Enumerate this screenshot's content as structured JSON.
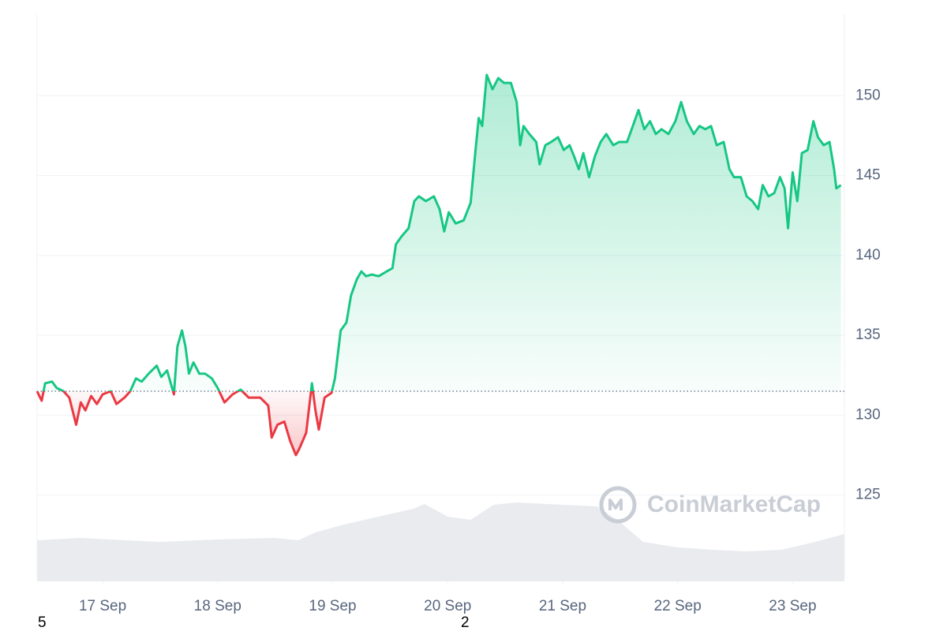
{
  "chart_data": {
    "type": "line",
    "x": [
      16.43,
      16.47,
      16.5,
      16.56,
      16.6,
      16.66,
      16.71,
      16.77,
      16.81,
      16.85,
      16.9,
      16.95,
      17.0,
      17.07,
      17.12,
      17.19,
      17.24,
      17.29,
      17.34,
      17.4,
      17.47,
      17.51,
      17.56,
      17.62,
      17.65,
      17.69,
      17.72,
      17.75,
      17.79,
      17.84,
      17.89,
      17.95,
      18.0,
      18.06,
      18.13,
      18.2,
      18.27,
      18.37,
      18.44,
      18.47,
      18.52,
      18.58,
      18.63,
      18.68,
      18.71,
      18.77,
      18.82,
      18.85,
      18.88,
      18.93,
      18.99,
      19.02,
      19.07,
      19.12,
      19.16,
      19.21,
      19.25,
      19.29,
      19.34,
      19.4,
      19.47,
      19.52,
      19.55,
      19.6,
      19.66,
      19.71,
      19.75,
      19.81,
      19.88,
      19.93,
      19.97,
      20.01,
      20.07,
      20.14,
      20.2,
      20.24,
      20.27,
      20.3,
      20.34,
      20.39,
      20.44,
      20.49,
      20.55,
      20.6,
      20.63,
      20.66,
      20.71,
      20.77,
      20.8,
      20.85,
      20.9,
      20.96,
      21.01,
      21.06,
      21.1,
      21.14,
      21.18,
      21.23,
      21.28,
      21.33,
      21.38,
      21.44,
      21.49,
      21.56,
      21.61,
      21.66,
      21.71,
      21.76,
      21.81,
      21.86,
      21.92,
      21.98,
      22.03,
      22.08,
      22.14,
      22.19,
      22.24,
      22.29,
      22.34,
      22.4,
      22.45,
      22.49,
      22.55,
      22.6,
      22.65,
      22.7,
      22.74,
      22.79,
      22.84,
      22.89,
      22.93,
      22.96,
      23.0,
      23.04,
      23.08,
      23.13,
      23.18,
      23.22,
      23.27,
      23.32,
      23.36,
      23.38,
      23.42
    ],
    "values": [
      131.5,
      130.9,
      132.0,
      132.1,
      131.7,
      131.5,
      131.1,
      129.4,
      130.8,
      130.3,
      131.2,
      130.7,
      131.3,
      131.5,
      130.7,
      131.1,
      131.5,
      132.3,
      132.1,
      132.6,
      133.1,
      132.4,
      132.8,
      131.3,
      134.3,
      135.3,
      134.3,
      132.6,
      133.3,
      132.6,
      132.6,
      132.3,
      131.7,
      130.8,
      131.3,
      131.6,
      131.1,
      131.1,
      130.6,
      128.6,
      129.4,
      129.6,
      128.4,
      127.5,
      127.9,
      128.9,
      132.0,
      130.3,
      129.1,
      131.1,
      131.4,
      132.3,
      135.3,
      135.8,
      137.5,
      138.5,
      139.0,
      138.7,
      138.8,
      138.7,
      139.0,
      139.2,
      140.7,
      141.2,
      141.7,
      143.4,
      143.7,
      143.4,
      143.7,
      142.9,
      141.5,
      142.7,
      142.0,
      142.2,
      143.3,
      146.4,
      148.6,
      148.1,
      151.3,
      150.4,
      151.1,
      150.8,
      150.8,
      149.6,
      146.9,
      148.1,
      147.6,
      147.1,
      145.7,
      146.9,
      147.1,
      147.4,
      146.6,
      146.9,
      146.2,
      145.4,
      146.4,
      144.9,
      146.2,
      147.1,
      147.6,
      146.9,
      147.1,
      147.1,
      148.1,
      149.1,
      147.9,
      148.4,
      147.6,
      147.9,
      147.6,
      148.4,
      149.6,
      148.4,
      147.6,
      148.1,
      147.9,
      148.1,
      146.9,
      147.1,
      145.4,
      144.9,
      144.9,
      143.7,
      143.4,
      142.9,
      144.4,
      143.7,
      143.9,
      144.9,
      144.2,
      141.7,
      145.2,
      143.4,
      146.4,
      146.6,
      148.4,
      147.4,
      146.9,
      147.1,
      145.4,
      144.2,
      144.4
    ],
    "baseline": 131.5,
    "colors": {
      "up": "#16c784",
      "down": "#ea3943",
      "volume": "#e9ebef"
    },
    "xlim": [
      16.43,
      23.45
    ],
    "xticks": [
      {
        "value": 17,
        "label": "17 Sep"
      },
      {
        "value": 18,
        "label": "18 Sep"
      },
      {
        "value": 19,
        "label": "19 Sep"
      },
      {
        "value": 20,
        "label": "20 Sep"
      },
      {
        "value": 21,
        "label": "21 Sep"
      },
      {
        "value": 22,
        "label": "22 Sep"
      },
      {
        "value": 23,
        "label": "23 Sep"
      }
    ],
    "ylim": [
      119.6,
      155.1
    ],
    "yticks": [
      125,
      130,
      135,
      140,
      145,
      150
    ],
    "grid": true,
    "volume": {
      "x": [
        16.43,
        16.8,
        17.2,
        17.5,
        18.0,
        18.5,
        18.7,
        18.85,
        19.1,
        19.4,
        19.7,
        19.8,
        20.0,
        20.2,
        20.4,
        20.6,
        21.0,
        21.3,
        21.5,
        21.7,
        22.0,
        22.3,
        22.6,
        22.9,
        23.2,
        23.45
      ],
      "values": [
        52,
        55,
        52,
        50,
        53,
        55,
        52,
        62,
        72,
        82,
        92,
        98,
        82,
        78,
        97,
        100,
        97,
        95,
        75,
        50,
        43,
        40,
        38,
        40,
        50,
        60
      ]
    },
    "watermark": "CoinMarketCap",
    "footer_labels": [
      "5",
      "2"
    ]
  }
}
